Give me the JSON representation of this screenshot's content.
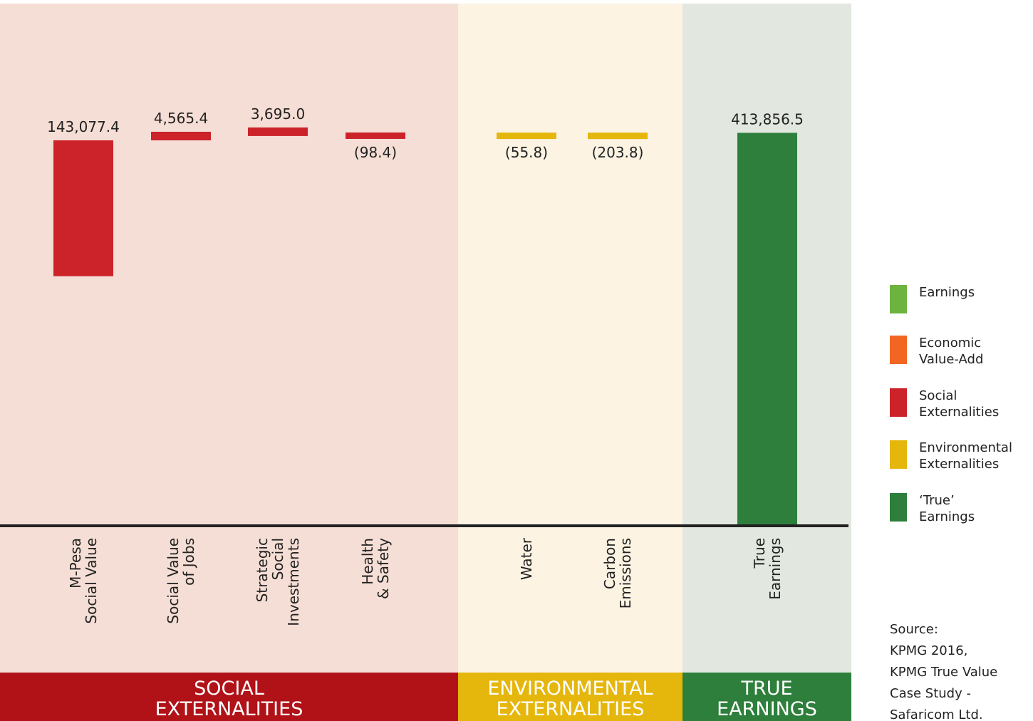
{
  "chart_data": {
    "type": "waterfall",
    "categories": [
      [
        "M-Pesa",
        "Social Value"
      ],
      [
        "Social Value",
        "of Jobs"
      ],
      [
        "Strategic",
        "Social",
        "Investments"
      ],
      [
        "Health",
        "& Safety"
      ],
      [
        "Water"
      ],
      [
        "Carbon",
        "Emissions"
      ],
      [
        "True",
        "Earnings"
      ]
    ],
    "values": [
      143077.4,
      4565.4,
      3695.0,
      -98.4,
      -55.8,
      -203.8,
      413856.5
    ],
    "value_labels": [
      "143,077.4",
      "4,565.4",
      "3,695.0",
      "(98.4)",
      "(55.8)",
      "(203.8)",
      "413,856.5"
    ],
    "kinds": [
      "delta",
      "delta",
      "delta",
      "delta",
      "delta",
      "delta",
      "total"
    ],
    "colors": [
      "#cc2229",
      "#cc2229",
      "#cc2229",
      "#cc2229",
      "#e5b60c",
      "#e5b60c",
      "#2d7f3b"
    ],
    "ylim": [
      0,
      550000
    ],
    "groups": [
      {
        "label": [
          "SOCIAL",
          "EXTERNALITIES"
        ],
        "color": "#b01218",
        "background": "#f5ded5",
        "categories": [
          0,
          3
        ]
      },
      {
        "label": [
          "ENVIRONMENTAL",
          "EXTERNALITIES"
        ],
        "color": "#e5b60c",
        "background": "#fcf3e3",
        "categories": [
          4,
          5
        ]
      },
      {
        "label": [
          "TRUE",
          "EARNINGS"
        ],
        "color": "#2d7f3b",
        "background": "#e2e8df",
        "categories": [
          6,
          6
        ]
      }
    ],
    "legend": [
      {
        "name": [
          "Earnings"
        ],
        "color": "#6db33f"
      },
      {
        "name": [
          "Economic",
          "Value-Add"
        ],
        "color": "#f26522"
      },
      {
        "name": [
          "Social",
          "Externalities"
        ],
        "color": "#cc2229"
      },
      {
        "name": [
          "Environmental",
          "Externalities"
        ],
        "color": "#e5b60c"
      },
      {
        "name": [
          "‘True’",
          "Earnings"
        ],
        "color": "#2d7f3b"
      }
    ],
    "source": [
      "Source:",
      "KPMG 2016,",
      "KPMG True Value",
      "Case Study -",
      "Safaricom Ltd."
    ]
  }
}
